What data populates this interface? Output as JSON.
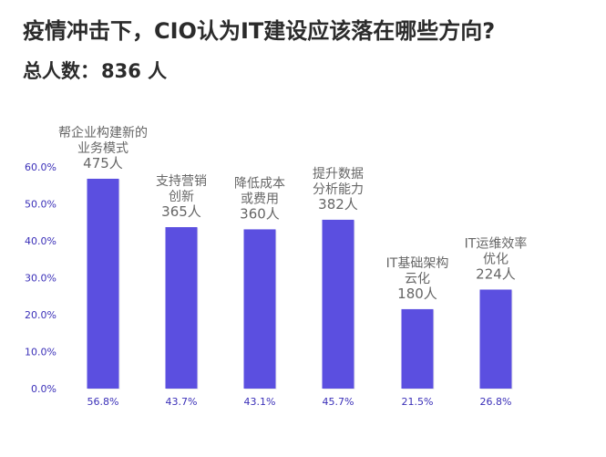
{
  "title": "疫情冲击下，CIO认为IT建设应该落在哪些方向?",
  "total": {
    "label": "总人数：",
    "value": "836 人"
  },
  "colors": {
    "bar": "#5b4fe0",
    "ytick": "#3a2fb8",
    "label": "#666666",
    "text": "#2b2b2b"
  },
  "chart_data": {
    "type": "bar",
    "categories": [
      [
        "帮企业构建新的",
        "业务模式"
      ],
      [
        "支持营销",
        "创新"
      ],
      [
        "降低成本",
        "或费用"
      ],
      [
        "提升数据",
        "分析能力"
      ],
      [
        "IT基础架构",
        "云化"
      ],
      [
        "IT运维效率",
        "优化"
      ]
    ],
    "counts": [
      "475人",
      "365人",
      "360人",
      "382人",
      "180人",
      "224人"
    ],
    "values": [
      56.8,
      43.7,
      43.1,
      45.7,
      21.5,
      26.8
    ],
    "value_labels": [
      "56.8%",
      "43.7%",
      "43.1%",
      "45.7%",
      "21.5%",
      "26.8%"
    ],
    "ylim": [
      0,
      60
    ],
    "yticks": [
      "0.0%",
      "10.0%",
      "20.0%",
      "30.0%",
      "40.0%",
      "50.0%",
      "60.0%"
    ],
    "grid": false,
    "legend": "none"
  }
}
